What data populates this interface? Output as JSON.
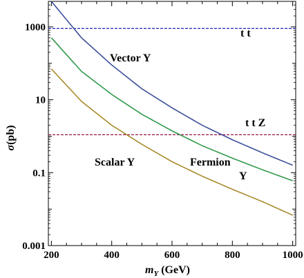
{
  "chart_data": {
    "type": "line",
    "xlabel_main": "m",
    "xlabel_sub": "Y",
    "xlabel_unit": " (GeV)",
    "ylabel_main": "σ",
    "ylabel_unit": "(pb)",
    "xlim": [
      190,
      1010
    ],
    "ylim": [
      0.001,
      5000
    ],
    "y_scale": "log",
    "grid": false,
    "x_ticks": [
      200,
      400,
      600,
      800,
      1000
    ],
    "y_major_ticks": [
      0.001,
      0.1,
      10,
      1000
    ],
    "y_tick_labels": [
      "0.001",
      "0.1",
      "10",
      "1000"
    ],
    "colors": {
      "vector": "#3b4f9a",
      "fermion": "#2f9a4c",
      "scalar": "#a88b2b",
      "tt": "#2f2fbf",
      "ttz": "#a0244f"
    },
    "series": [
      {
        "key": "vector",
        "x": [
          200,
          300,
          400,
          500,
          600,
          700,
          800,
          900,
          1000
        ],
        "y": [
          5000,
          500,
          90,
          20,
          6.0,
          2.0,
          0.8,
          0.35,
          0.16
        ]
      },
      {
        "key": "fermion",
        "x": [
          200,
          300,
          400,
          500,
          600,
          700,
          800,
          900,
          1000
        ],
        "y": [
          500,
          60,
          14,
          4.0,
          1.4,
          0.55,
          0.25,
          0.12,
          0.06
        ]
      },
      {
        "key": "scalar",
        "x": [
          200,
          300,
          400,
          500,
          600,
          700,
          800,
          900,
          1000
        ],
        "y": [
          70,
          9.0,
          2.0,
          0.6,
          0.2,
          0.08,
          0.035,
          0.016,
          0.0068
        ]
      }
    ],
    "reference_lines": [
      {
        "key": "tt",
        "y": 900,
        "label": "t t"
      },
      {
        "key": "ttz",
        "y": 1.1,
        "label": "t t Z"
      }
    ],
    "annotations": [
      {
        "key": "vector_label",
        "text": "Vector Y"
      },
      {
        "key": "scalar_label",
        "text": "Scalar Y"
      },
      {
        "key": "fermion_label_1",
        "text": "Fermion"
      },
      {
        "key": "fermion_label_2",
        "text": "Y"
      }
    ]
  }
}
